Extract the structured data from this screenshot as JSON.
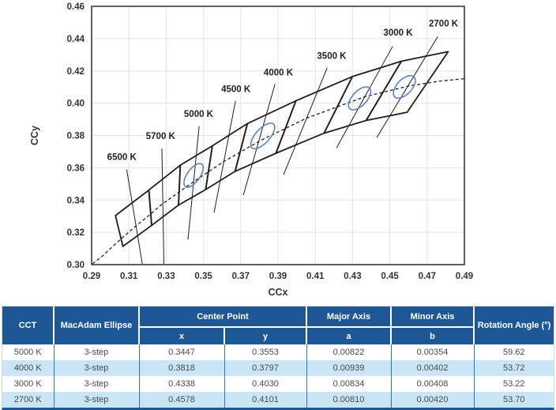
{
  "colors": {
    "header_blue": "#1E5796",
    "row_alt_blue": "#CAE5F6",
    "cell_border_blue": "#2E75B6",
    "ellipse_blue": "#5B82BB",
    "grid": "#E7E3D8",
    "plot_border": "#3A3A3A",
    "line_black": "#1F1F1F",
    "tick_text": "#333333",
    "data_text": "#4A4A4A"
  },
  "chart_data": {
    "type": "scatter",
    "title": "",
    "xlabel": "CCx",
    "ylabel": "CCy",
    "xlim": [
      0.29,
      0.49
    ],
    "ylim": [
      0.3,
      0.46
    ],
    "xticks": [
      0.29,
      0.31,
      0.33,
      0.35,
      0.37,
      0.39,
      0.41,
      0.43,
      0.45,
      0.47,
      0.49
    ],
    "yticks": [
      0.3,
      0.32,
      0.34,
      0.36,
      0.38,
      0.4,
      0.42,
      0.44,
      0.46
    ],
    "grid": true,
    "legend": "none",
    "planckian_locus": [
      [
        0.2905,
        0.3005
      ],
      [
        0.2952,
        0.3048
      ],
      [
        0.3064,
        0.3166
      ],
      [
        0.3135,
        0.3237
      ],
      [
        0.3221,
        0.3318
      ],
      [
        0.3271,
        0.3369
      ],
      [
        0.338,
        0.3459
      ],
      [
        0.3451,
        0.3516
      ],
      [
        0.3611,
        0.364
      ],
      [
        0.3805,
        0.3768
      ],
      [
        0.4053,
        0.3907
      ],
      [
        0.4369,
        0.4041
      ],
      [
        0.4599,
        0.4106
      ],
      [
        0.477,
        0.4137
      ],
      [
        0.49,
        0.4152
      ]
    ],
    "ansi_bin_edges": [
      {
        "top": [
          0.3028,
          0.3304
        ],
        "bottom": [
          0.3068,
          0.3113
        ]
      },
      {
        "top": [
          0.3207,
          0.3462
        ],
        "bottom": [
          0.3222,
          0.3243
        ]
      },
      {
        "top": [
          0.3376,
          0.3616
        ],
        "bottom": [
          0.3366,
          0.3369
        ]
      },
      {
        "top": [
          0.3548,
          0.3736
        ],
        "bottom": [
          0.3512,
          0.3465
        ]
      },
      {
        "top": [
          0.3736,
          0.3874
        ],
        "bottom": [
          0.367,
          0.3578
        ]
      },
      {
        "top": [
          0.3996,
          0.4015
        ],
        "bottom": [
          0.3889,
          0.369
        ]
      },
      {
        "top": [
          0.4299,
          0.4165
        ],
        "bottom": [
          0.4147,
          0.3814
        ]
      },
      {
        "top": [
          0.4562,
          0.426
        ],
        "bottom": [
          0.4373,
          0.3893
        ]
      },
      {
        "top": [
          0.4813,
          0.4319
        ],
        "bottom": [
          0.4593,
          0.3944
        ]
      }
    ],
    "isotherm_labels": [
      {
        "label": "6500 K",
        "line": [
          [
            0.3088,
            0.359
          ],
          [
            0.3172,
            0.3005
          ]
        ],
        "label_pos": [
          0.3062,
          0.3648
        ]
      },
      {
        "label": "5700 K",
        "line": [
          [
            0.3277,
            0.372
          ],
          [
            0.3288,
            0.3005
          ]
        ],
        "label_pos": [
          0.327,
          0.3778
        ]
      },
      {
        "label": "5000 K",
        "line": [
          [
            0.3477,
            0.3858
          ],
          [
            0.3417,
            0.3155
          ]
        ],
        "label_pos": [
          0.3474,
          0.3915
        ]
      },
      {
        "label": "4500 K",
        "line": [
          [
            0.3672,
            0.4015
          ],
          [
            0.3557,
            0.3322
          ]
        ],
        "label_pos": [
          0.3674,
          0.407
        ]
      },
      {
        "label": "4000 K",
        "line": [
          [
            0.3884,
            0.4118
          ],
          [
            0.3714,
            0.343
          ]
        ],
        "label_pos": [
          0.3902,
          0.4172
        ]
      },
      {
        "label": "3500 K",
        "line": [
          [
            0.4164,
            0.422
          ],
          [
            0.393,
            0.3557
          ]
        ],
        "label_pos": [
          0.4188,
          0.4275
        ]
      },
      {
        "label": "3000 K",
        "line": [
          [
            0.4515,
            0.4352
          ],
          [
            0.4214,
            0.3723
          ]
        ],
        "label_pos": [
          0.4544,
          0.4418
        ]
      },
      {
        "label": "2700 K",
        "line": [
          [
            0.4757,
            0.4412
          ],
          [
            0.443,
            0.3787
          ]
        ],
        "label_pos": [
          0.4788,
          0.4476
        ]
      }
    ],
    "macadam_ellipses": [
      {
        "cct": "5000 K",
        "center": [
          0.3447,
          0.3553
        ],
        "a": 0.00822,
        "b": 0.00354,
        "rotation_deg": 59.62
      },
      {
        "cct": "4000 K",
        "center": [
          0.3818,
          0.3797
        ],
        "a": 0.00939,
        "b": 0.00402,
        "rotation_deg": 53.72
      },
      {
        "cct": "3000 K",
        "center": [
          0.4338,
          0.403
        ],
        "a": 0.00834,
        "b": 0.00408,
        "rotation_deg": 53.22
      },
      {
        "cct": "2700 K",
        "center": [
          0.4578,
          0.4101
        ],
        "a": 0.0081,
        "b": 0.0042,
        "rotation_deg": 53.7
      }
    ]
  },
  "table": {
    "columns": {
      "cct": "CCT",
      "macadam": "MacAdam Ellipse",
      "center_point": "Center Point",
      "center_x": "x",
      "center_y": "y",
      "major_axis": "Major Axis",
      "major_a": "a",
      "minor_axis": "Minor Axis",
      "minor_b": "b",
      "rotation": "Rotation Angle (°)"
    },
    "rows": [
      {
        "cct": "5000 K",
        "ellipse": "3-step",
        "x": "0.3447",
        "y": "0.3553",
        "a": "0.00822",
        "b": "0.00354",
        "rot": "59.62"
      },
      {
        "cct": "4000 K",
        "ellipse": "3-step",
        "x": "0.3818",
        "y": "0.3797",
        "a": "0.00939",
        "b": "0.00402",
        "rot": "53.72"
      },
      {
        "cct": "3000 K",
        "ellipse": "3-step",
        "x": "0.4338",
        "y": "0.4030",
        "a": "0.00834",
        "b": "0.00408",
        "rot": "53.22"
      },
      {
        "cct": "2700 K",
        "ellipse": "3-step",
        "x": "0.4578",
        "y": "0.4101",
        "a": "0.00810",
        "b": "0.00420",
        "rot": "53.70"
      }
    ]
  }
}
